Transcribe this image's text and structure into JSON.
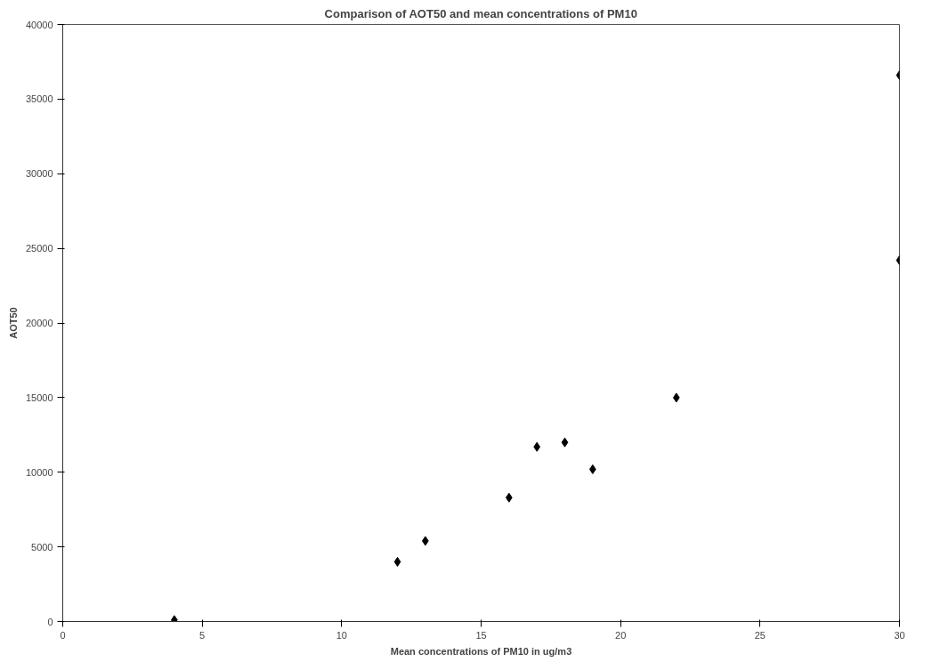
{
  "chart_data": {
    "type": "scatter",
    "title": "Comparison of AOT50 and mean concentrations of PM10",
    "xlabel": "Mean concentrations of PM10 in ug/m3",
    "ylabel": "AOT50",
    "x": [
      4,
      12,
      13,
      16,
      17,
      18,
      19,
      22,
      30,
      30
    ],
    "series": [
      {
        "color": "#000000",
        "values": [
          100,
          4000,
          5400,
          8300,
          11700,
          12000,
          10200,
          15000,
          36600,
          24200
        ]
      }
    ],
    "xlim": [
      0,
      30
    ],
    "xticks": [
      0,
      5,
      10,
      15,
      20,
      25,
      30
    ],
    "ylim": [
      0,
      40000
    ],
    "yticks": [
      0,
      5000,
      10000,
      15000,
      20000,
      25000,
      30000,
      35000,
      40000
    ],
    "grid": false,
    "marker": "diamond"
  }
}
